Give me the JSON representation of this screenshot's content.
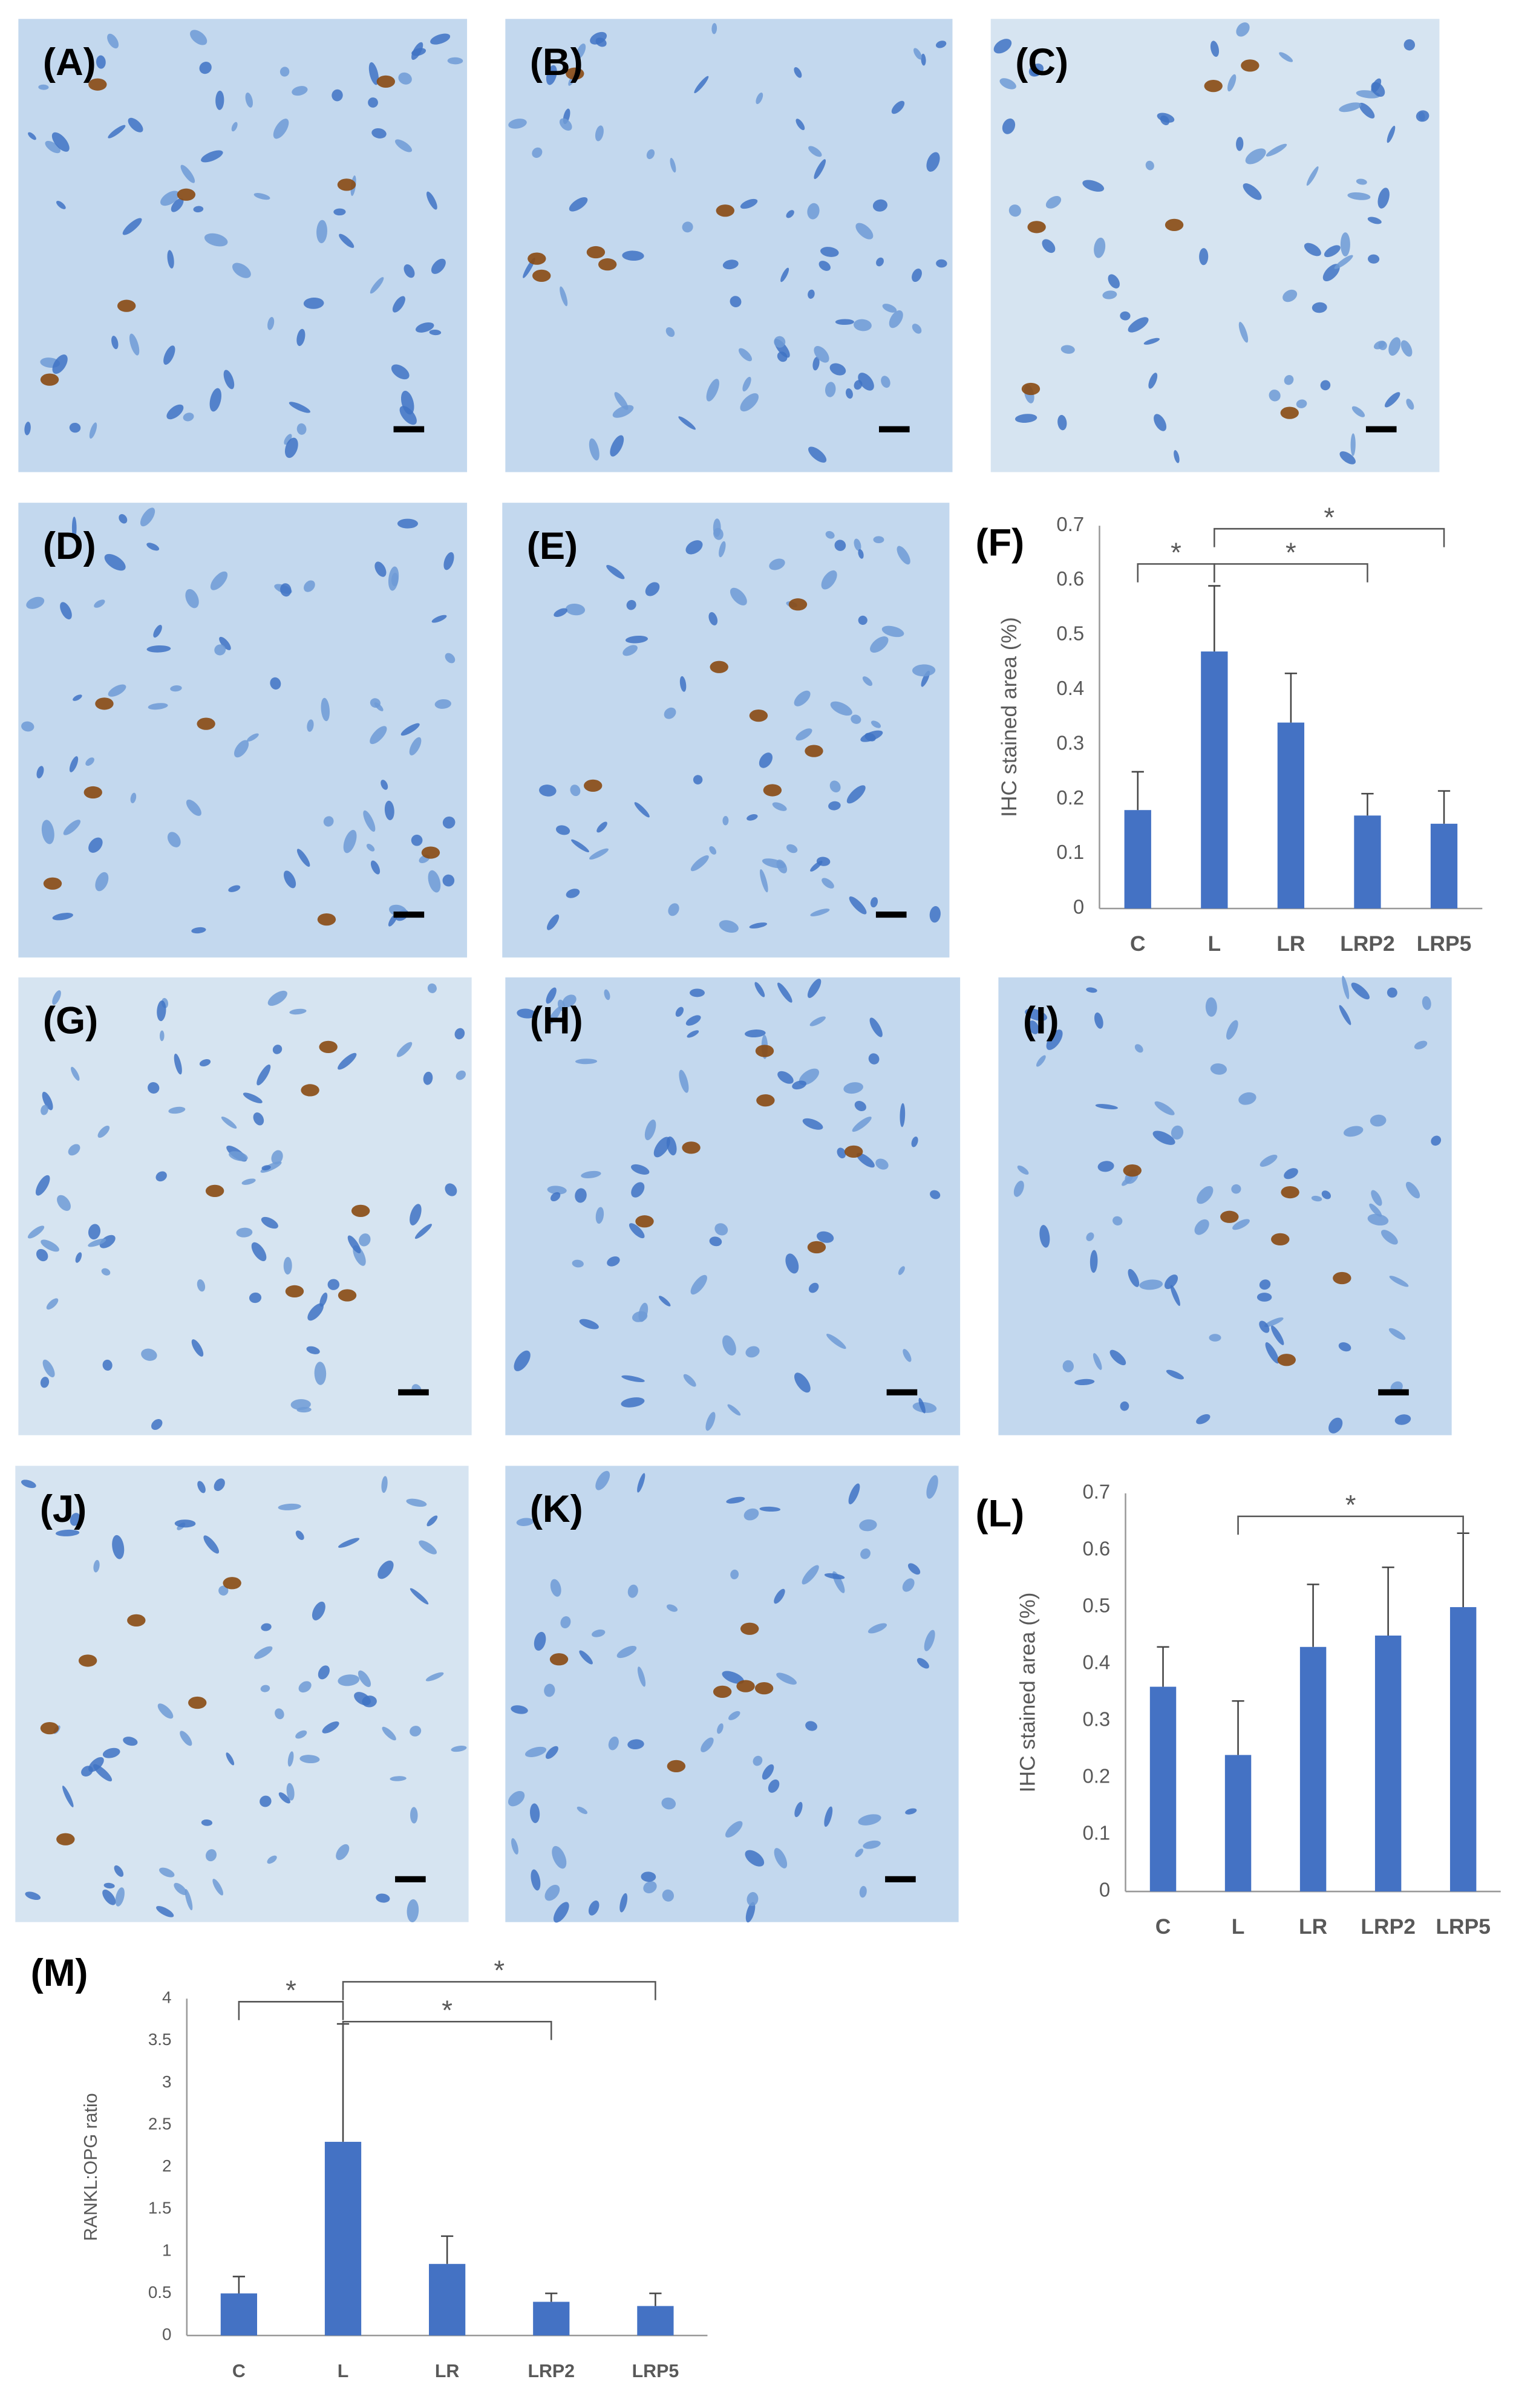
{
  "panels": [
    {
      "label": "(A)"
    },
    {
      "label": "(B)"
    },
    {
      "label": "(C)"
    },
    {
      "label": "(D)"
    },
    {
      "label": "(E)"
    },
    {
      "label": "(G)"
    },
    {
      "label": "(H)"
    },
    {
      "label": "(I)"
    },
    {
      "label": "(J)"
    },
    {
      "label": "(K)"
    }
  ],
  "chart_data": [
    {
      "type": "bar",
      "panel": "(F)",
      "y_label": "IHC stained area (%)",
      "categories": [
        "C",
        "L",
        "LR",
        "LRP2",
        "LRP5"
      ],
      "series": [
        {
          "color": "#4472c4",
          "values": [
            0.18,
            0.47,
            0.34,
            0.17,
            0.155
          ],
          "errors": [
            0.07,
            0.12,
            0.09,
            0.04,
            0.06
          ]
        }
      ],
      "ylim": [
        0,
        0.7
      ],
      "yticks": [
        0,
        0.1,
        0.2,
        0.3,
        0.4,
        0.5,
        0.6,
        0.7
      ],
      "annotations": [
        {
          "from": 0,
          "to": 1,
          "label": "*"
        },
        {
          "from": 1,
          "to": 3,
          "label": "*"
        },
        {
          "from": 1,
          "to": 4,
          "label": "*"
        }
      ]
    },
    {
      "type": "bar",
      "panel": "(L)",
      "y_label": "IHC stained area (%)",
      "categories": [
        "C",
        "L",
        "LR",
        "LRP2",
        "LRP5"
      ],
      "series": [
        {
          "color": "#4472c4",
          "values": [
            0.36,
            0.24,
            0.43,
            0.45,
            0.5
          ],
          "errors": [
            0.07,
            0.095,
            0.11,
            0.12,
            0.13
          ]
        }
      ],
      "ylim": [
        0,
        0.7
      ],
      "yticks": [
        0,
        0.1,
        0.2,
        0.3,
        0.4,
        0.5,
        0.6,
        0.7
      ],
      "annotations": [
        {
          "from": 1,
          "to": 4,
          "label": "*"
        }
      ]
    },
    {
      "type": "bar",
      "panel": "(M)",
      "y_label": "RANKL:OPG ratio",
      "categories": [
        "C",
        "L",
        "LR",
        "LRP2",
        "LRP5"
      ],
      "series": [
        {
          "color": "#4472c4",
          "values": [
            0.5,
            2.3,
            0.85,
            0.4,
            0.35
          ],
          "errors": [
            0.2,
            1.4,
            0.33,
            0.1,
            0.15
          ]
        }
      ],
      "ylim": [
        0,
        4
      ],
      "yticks": [
        0,
        0.5,
        1,
        1.5,
        2,
        2.5,
        3,
        3.5,
        4
      ],
      "annotations": [
        {
          "from": 0,
          "to": 1,
          "label": "*"
        },
        {
          "from": 1,
          "to": 3,
          "label": "*"
        },
        {
          "from": 1,
          "to": 4,
          "label": "*"
        }
      ]
    }
  ]
}
